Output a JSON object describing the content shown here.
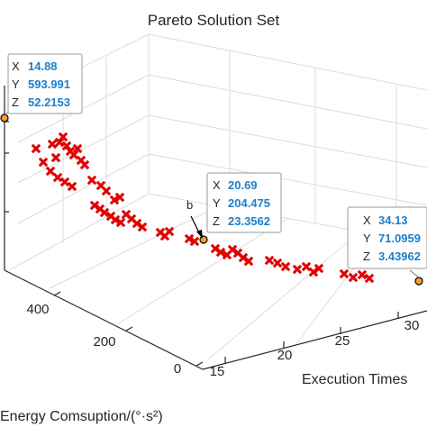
{
  "chart_data": {
    "type": "scatter",
    "title": "Pareto Solution Set",
    "xlabel": "Execution Times",
    "ylabel": "Energy Comsuption/(°·s²)",
    "x_ticks": [
      "15",
      "20",
      "25",
      "30"
    ],
    "y_ticks": [
      "0",
      "200",
      "400"
    ],
    "marker": "x",
    "marker_color": "#e00000",
    "tip_value_color": "#1e7fc8",
    "grid": true,
    "datatips": [
      {
        "x_label": "X",
        "x_value": "14.88",
        "y_label": "Y",
        "y_value": "593.991",
        "z_label": "Z",
        "z_value": "52.2153"
      },
      {
        "x_label": "X",
        "x_value": "20.69",
        "y_label": "Y",
        "y_value": "204.475",
        "z_label": "Z",
        "z_value": "23.3562"
      },
      {
        "x_label": "X",
        "x_value": "34.13",
        "y_label": "Y",
        "y_value": "71.0959",
        "z_label": "Z",
        "z_value": "3.43962"
      }
    ],
    "annotations": [
      "b"
    ]
  }
}
